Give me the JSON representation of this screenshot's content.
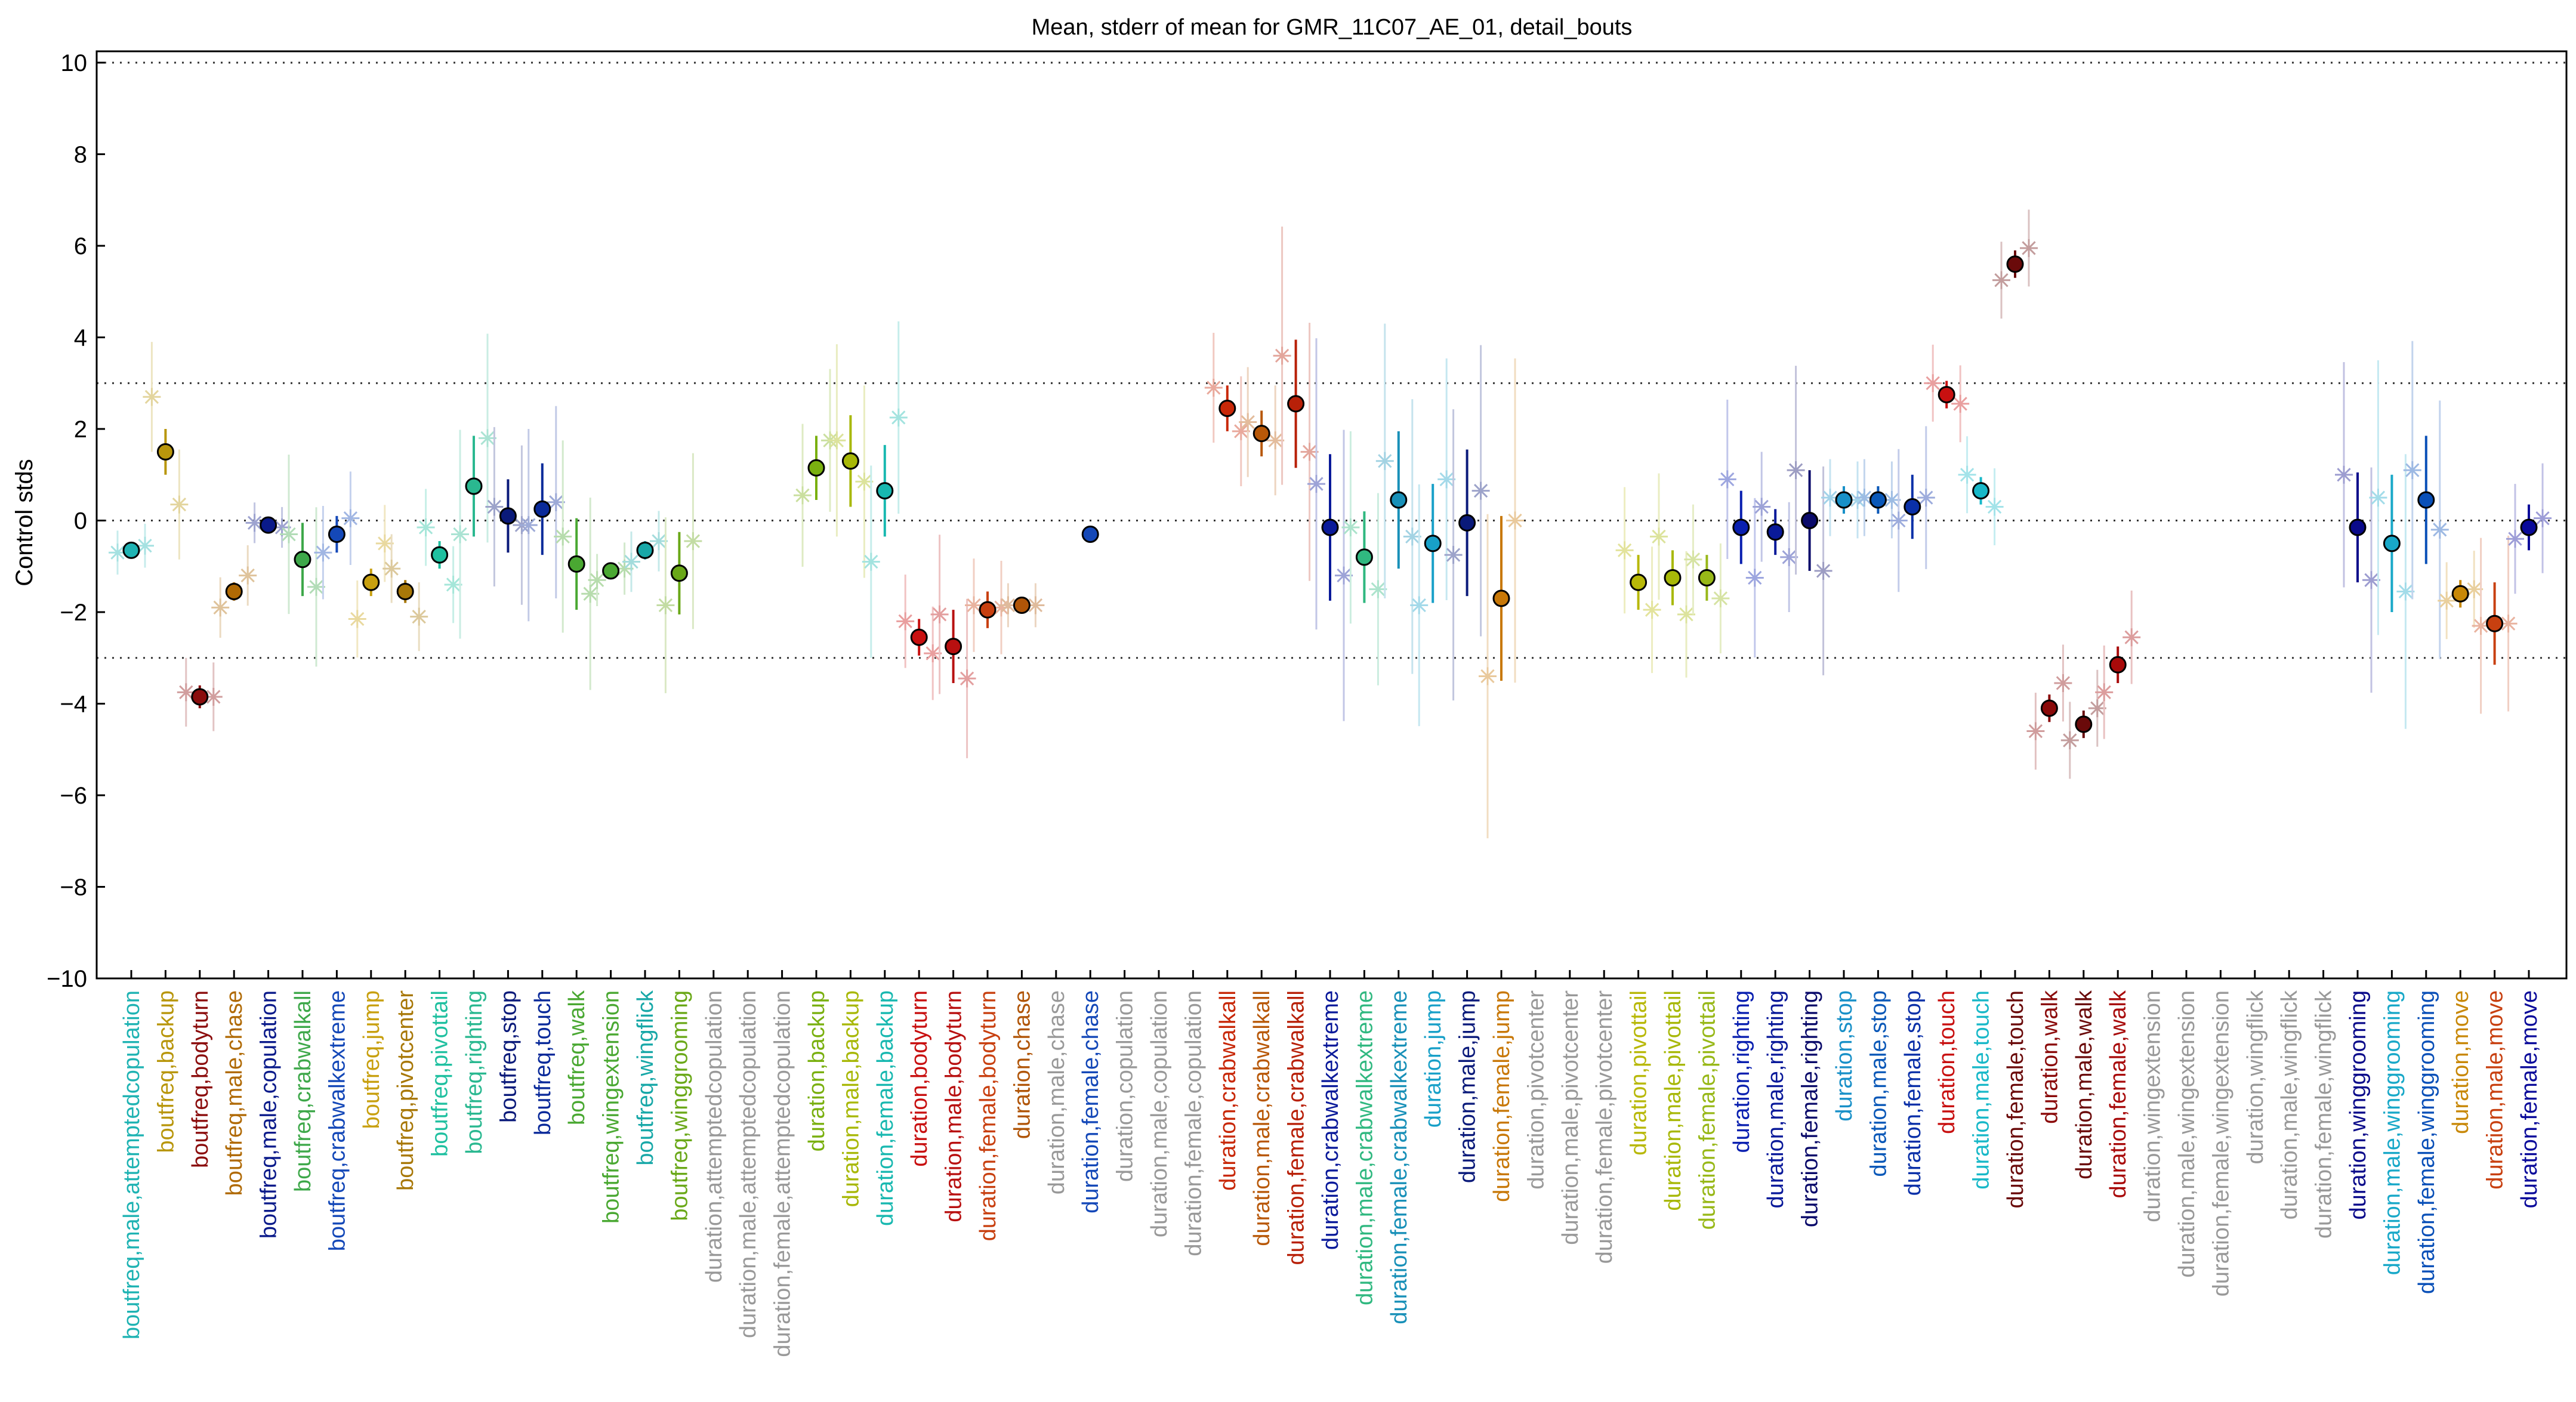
{
  "chart_data": {
    "type": "scatter",
    "title": "Mean, stderr of mean for GMR_11C07_AE_01, detail_bouts",
    "ylabel": "Control stds",
    "xlabel": "",
    "ylim": [
      -10,
      10
    ],
    "yticks": [
      -10,
      -8,
      -6,
      -4,
      -2,
      0,
      2,
      4,
      6,
      8,
      10
    ],
    "hlines": [
      -10,
      -3,
      0,
      3,
      10
    ],
    "categories": [
      {
        "label": "boutfreq,male,attemptedcopulation",
        "color": "#1fb3b3",
        "mean": -0.65,
        "sem": 0.1,
        "points": [
          -0.7,
          -0.55
        ]
      },
      {
        "label": "boutfreq,backup",
        "color": "#b8960c",
        "mean": 1.5,
        "sem": 0.5,
        "points": [
          2.7,
          0.35
        ]
      },
      {
        "label": "boutfreq,bodyturn",
        "color": "#8b0d0d",
        "mean": -3.85,
        "sem": 0.25,
        "points": [
          -3.75,
          -3.85
        ]
      },
      {
        "label": "boutfreq,male,chase",
        "color": "#b06a05",
        "mean": -1.55,
        "sem": 0.2,
        "points": [
          -1.9,
          -1.2
        ]
      },
      {
        "label": "boutfreq,male,copulation",
        "color": "#0a1a8a",
        "mean": -0.1,
        "sem": 0.08,
        "points": [
          -0.05,
          -0.15
        ]
      },
      {
        "label": "boutfreq,crabwalkall",
        "color": "#3ea84a",
        "mean": -0.85,
        "sem": 0.8,
        "points": [
          -0.3,
          -1.45
        ]
      },
      {
        "label": "boutfreq,crabwalkextreme",
        "color": "#1448b8",
        "mean": -0.3,
        "sem": 0.4,
        "points": [
          -0.7,
          0.05
        ]
      },
      {
        "label": "boutfreq,jump",
        "color": "#c8a010",
        "mean": -1.35,
        "sem": 0.3,
        "points": [
          -2.15,
          -0.5
        ]
      },
      {
        "label": "boutfreq,pivotcenter",
        "color": "#a87808",
        "mean": -1.55,
        "sem": 0.25,
        "points": [
          -1.05,
          -2.1
        ]
      },
      {
        "label": "boutfreq,pivottail",
        "color": "#1fc0a0",
        "mean": -0.75,
        "sem": 0.3,
        "points": [
          -0.15,
          -1.4
        ]
      },
      {
        "label": "boutfreq,righting",
        "color": "#2ab890",
        "mean": 0.75,
        "sem": 1.1,
        "points": [
          -0.3,
          1.8
        ]
      },
      {
        "label": "boutfreq,stop",
        "color": "#0a1a7a",
        "mean": 0.1,
        "sem": 0.8,
        "points": [
          0.3,
          -0.1
        ]
      },
      {
        "label": "boutfreq,touch",
        "color": "#0a2a9a",
        "mean": 0.25,
        "sem": 1.0,
        "points": [
          -0.1,
          0.4
        ]
      },
      {
        "label": "boutfreq,walk",
        "color": "#4aa832",
        "mean": -0.95,
        "sem": 1.0,
        "points": [
          -0.35,
          -1.6
        ]
      },
      {
        "label": "boutfreq,wingextension",
        "color": "#4aa832",
        "mean": -1.1,
        "sem": 0.15,
        "points": [
          -1.3,
          -1.05
        ]
      },
      {
        "label": "boutfreq,wingflick",
        "color": "#18a8a8",
        "mean": -0.65,
        "sem": 0.2,
        "points": [
          -0.9,
          -0.45
        ]
      },
      {
        "label": "boutfreq,winggrooming",
        "color": "#6aa818",
        "mean": -1.15,
        "sem": 0.9,
        "points": [
          -1.85,
          -0.45
        ]
      },
      {
        "label": "duration,attemptedcopulation",
        "color": "#999999"
      },
      {
        "label": "duration,male,attemptedcopulation",
        "color": "#999999"
      },
      {
        "label": "duration,female,attemptedcopulation",
        "color": "#999999"
      },
      {
        "label": "duration,backup",
        "color": "#7ab010",
        "mean": 1.15,
        "sem": 0.7,
        "points": [
          0.55,
          1.75
        ]
      },
      {
        "label": "duration,male,backup",
        "color": "#a8b808",
        "mean": 1.3,
        "sem": 1.0,
        "points": [
          1.75,
          0.85
        ]
      },
      {
        "label": "duration,female,backup",
        "color": "#18b8b0",
        "mean": 0.65,
        "sem": 1.0,
        "points": [
          -0.9,
          2.25
        ]
      },
      {
        "label": "duration,bodyturn",
        "color": "#c81010",
        "mean": -2.55,
        "sem": 0.4,
        "points": [
          -2.2,
          -2.9
        ]
      },
      {
        "label": "duration,male,bodyturn",
        "color": "#b81010",
        "mean": -2.75,
        "sem": 0.8,
        "points": [
          -2.05,
          -3.45
        ]
      },
      {
        "label": "duration,female,bodyturn",
        "color": "#c84010",
        "mean": -1.95,
        "sem": 0.4,
        "points": [
          -1.85,
          -1.9
        ]
      },
      {
        "label": "duration,chase",
        "color": "#b05508",
        "mean": -1.85,
        "sem": 0.1,
        "points": [
          -1.85,
          -1.85
        ]
      },
      {
        "label": "duration,male,chase",
        "color": "#999999"
      },
      {
        "label": "duration,female,chase",
        "color": "#1448b8",
        "mean": -0.3,
        "sem": 0.15,
        "points": []
      },
      {
        "label": "duration,copulation",
        "color": "#999999"
      },
      {
        "label": "duration,male,copulation",
        "color": "#999999"
      },
      {
        "label": "duration,female,copulation",
        "color": "#999999"
      },
      {
        "label": "duration,crabwalkall",
        "color": "#c82808",
        "mean": 2.45,
        "sem": 0.5,
        "points": [
          2.9,
          1.95
        ]
      },
      {
        "label": "duration,male,crabwalkall",
        "color": "#b85808",
        "mean": 1.9,
        "sem": 0.5,
        "points": [
          2.15,
          1.75
        ]
      },
      {
        "label": "duration,female,crabwalkall",
        "color": "#b82008",
        "mean": 2.55,
        "sem": 1.4,
        "points": [
          3.6,
          1.5
        ]
      },
      {
        "label": "duration,crabwalkextreme",
        "color": "#0a1a9a",
        "mean": -0.15,
        "sem": 1.6,
        "points": [
          0.8,
          -1.2
        ]
      },
      {
        "label": "duration,male,crabwalkextreme",
        "color": "#30b880",
        "mean": -0.8,
        "sem": 1.0,
        "points": [
          -0.15,
          -1.5
        ]
      },
      {
        "label": "duration,female,crabwalkextreme",
        "color": "#1890b8",
        "mean": 0.45,
        "sem": 1.5,
        "points": [
          1.3,
          -0.35
        ]
      },
      {
        "label": "duration,jump",
        "color": "#18a0c8",
        "mean": -0.5,
        "sem": 1.3,
        "points": [
          -1.85,
          0.9
        ]
      },
      {
        "label": "duration,male,jump",
        "color": "#0a1a7a",
        "mean": -0.05,
        "sem": 1.6,
        "points": [
          -0.75,
          0.65
        ]
      },
      {
        "label": "duration,female,jump",
        "color": "#c87808",
        "mean": -1.7,
        "sem": 1.8,
        "points": [
          -3.4,
          0.0
        ]
      },
      {
        "label": "duration,pivotcenter",
        "color": "#999999"
      },
      {
        "label": "duration,male,pivotcenter",
        "color": "#999999"
      },
      {
        "label": "duration,female,pivotcenter",
        "color": "#999999"
      },
      {
        "label": "duration,pivottail",
        "color": "#b8b808",
        "mean": -1.35,
        "sem": 0.6,
        "points": [
          -0.65,
          -1.95
        ]
      },
      {
        "label": "duration,male,pivottail",
        "color": "#a8b808",
        "mean": -1.25,
        "sem": 0.6,
        "points": [
          -0.35,
          -2.05
        ]
      },
      {
        "label": "duration,female,pivottail",
        "color": "#98b818",
        "mean": -1.25,
        "sem": 0.5,
        "points": [
          -0.85,
          -1.7
        ]
      },
      {
        "label": "duration,righting",
        "color": "#0a20b0",
        "mean": -0.15,
        "sem": 0.8,
        "points": [
          0.9,
          -1.25
        ]
      },
      {
        "label": "duration,male,righting",
        "color": "#0a1a9a",
        "mean": -0.25,
        "sem": 0.5,
        "points": [
          0.3,
          -0.8
        ]
      },
      {
        "label": "duration,female,righting",
        "color": "#0a0a6a",
        "mean": 0.0,
        "sem": 1.1,
        "points": [
          1.1,
          -1.1
        ]
      },
      {
        "label": "duration,stop",
        "color": "#1890c8",
        "mean": 0.45,
        "sem": 0.3,
        "points": [
          0.5,
          0.45
        ]
      },
      {
        "label": "duration,male,stop",
        "color": "#0a58b8",
        "mean": 0.45,
        "sem": 0.3,
        "points": [
          0.5,
          0.45
        ]
      },
      {
        "label": "duration,female,stop",
        "color": "#0a30a8",
        "mean": 0.3,
        "sem": 0.7,
        "points": [
          0.0,
          0.5
        ]
      },
      {
        "label": "duration,touch",
        "color": "#c81010",
        "mean": 2.75,
        "sem": 0.3,
        "points": [
          3.0,
          2.55
        ]
      },
      {
        "label": "duration,male,touch",
        "color": "#18b8c8",
        "mean": 0.65,
        "sem": 0.3,
        "points": [
          1.0,
          0.3
        ]
      },
      {
        "label": "duration,female,touch",
        "color": "#6a0a0a",
        "mean": 5.6,
        "sem": 0.3,
        "points": [
          5.25,
          5.95
        ]
      },
      {
        "label": "duration,walk",
        "color": "#8a0a0a",
        "mean": -4.1,
        "sem": 0.3,
        "points": [
          -4.6,
          -3.55
        ]
      },
      {
        "label": "duration,male,walk",
        "color": "#6a0a0a",
        "mean": -4.45,
        "sem": 0.3,
        "points": [
          -4.8,
          -4.1
        ]
      },
      {
        "label": "duration,female,walk",
        "color": "#a80a0a",
        "mean": -3.15,
        "sem": 0.4,
        "points": [
          -3.75,
          -2.55
        ]
      },
      {
        "label": "duration,wingextension",
        "color": "#999999"
      },
      {
        "label": "duration,male,wingextension",
        "color": "#999999"
      },
      {
        "label": "duration,female,wingextension",
        "color": "#999999"
      },
      {
        "label": "duration,wingflick",
        "color": "#999999"
      },
      {
        "label": "duration,male,wingflick",
        "color": "#999999"
      },
      {
        "label": "duration,female,wingflick",
        "color": "#999999"
      },
      {
        "label": "duration,winggrooming",
        "color": "#0a0a8a",
        "mean": -0.15,
        "sem": 1.2,
        "points": [
          1.0,
          -1.3
        ]
      },
      {
        "label": "duration,male,winggrooming",
        "color": "#18a8c8",
        "mean": -0.5,
        "sem": 1.5,
        "points": [
          0.5,
          -1.55
        ]
      },
      {
        "label": "duration,female,winggrooming",
        "color": "#0a50b8",
        "mean": 0.45,
        "sem": 1.4,
        "points": [
          1.1,
          -0.2
        ]
      },
      {
        "label": "duration,move",
        "color": "#c88808",
        "mean": -1.6,
        "sem": 0.3,
        "points": [
          -1.75,
          -1.5
        ]
      },
      {
        "label": "duration,male,move",
        "color": "#c84010",
        "mean": -2.25,
        "sem": 0.9,
        "points": [
          -2.3,
          -2.25
        ]
      },
      {
        "label": "duration,female,move",
        "color": "#0a0a9a",
        "mean": -0.15,
        "sem": 0.5,
        "points": [
          -0.4,
          0.05
        ]
      }
    ]
  }
}
